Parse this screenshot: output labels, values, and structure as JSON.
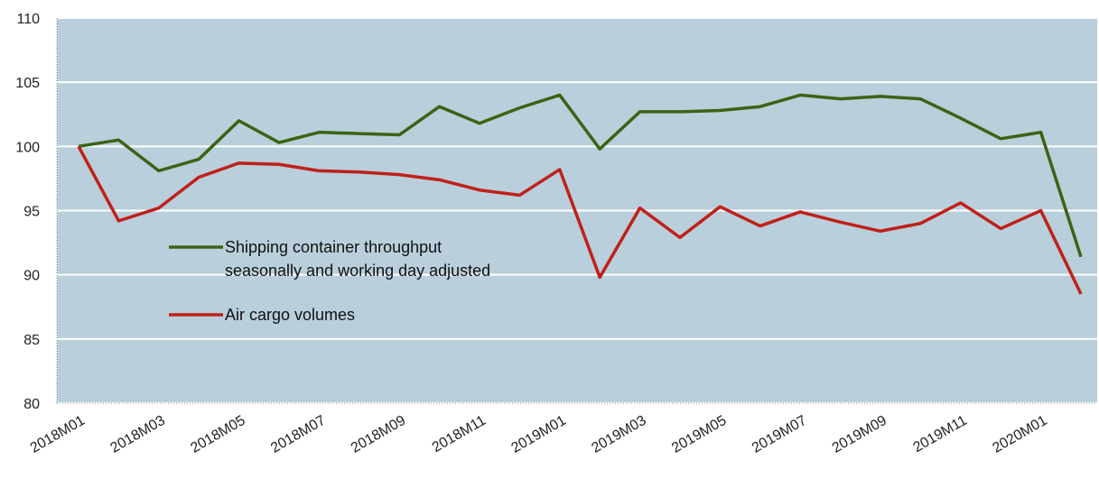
{
  "chart_data": {
    "type": "line",
    "categories": [
      "2018M01",
      null,
      "2018M03",
      null,
      "2018M05",
      null,
      "2018M07",
      null,
      "2018M09",
      null,
      "2018M11",
      null,
      "2019M01",
      null,
      "2019M03",
      null,
      "2019M05",
      null,
      "2019M07",
      null,
      "2019M09",
      null,
      "2019M11",
      null,
      "2020M01",
      null
    ],
    "series": [
      {
        "name": "Shipping container throughput seasonally and working day adjusted",
        "color": "#3a6414",
        "values": [
          100,
          100.5,
          98.1,
          99.0,
          102.0,
          100.3,
          101.1,
          101.0,
          100.9,
          103.1,
          101.8,
          103.0,
          104.0,
          99.8,
          102.7,
          102.7,
          102.8,
          103.1,
          104.0,
          103.7,
          103.9,
          103.7,
          102.2,
          100.6,
          101.1,
          91.4
        ]
      },
      {
        "name": "Air cargo volumes",
        "color": "#c0201a",
        "values": [
          100,
          94.2,
          95.2,
          97.6,
          98.7,
          98.6,
          98.1,
          98.0,
          97.8,
          97.4,
          96.6,
          96.2,
          98.2,
          89.8,
          95.2,
          92.9,
          95.3,
          93.8,
          94.9,
          94.1,
          93.4,
          94.0,
          95.6,
          93.6,
          95.0,
          88.5
        ]
      }
    ],
    "ylim": [
      80,
      110
    ],
    "yticks": [
      80,
      85,
      90,
      95,
      100,
      105,
      110
    ],
    "grid": true,
    "plot_background": "#b9cfdb"
  }
}
